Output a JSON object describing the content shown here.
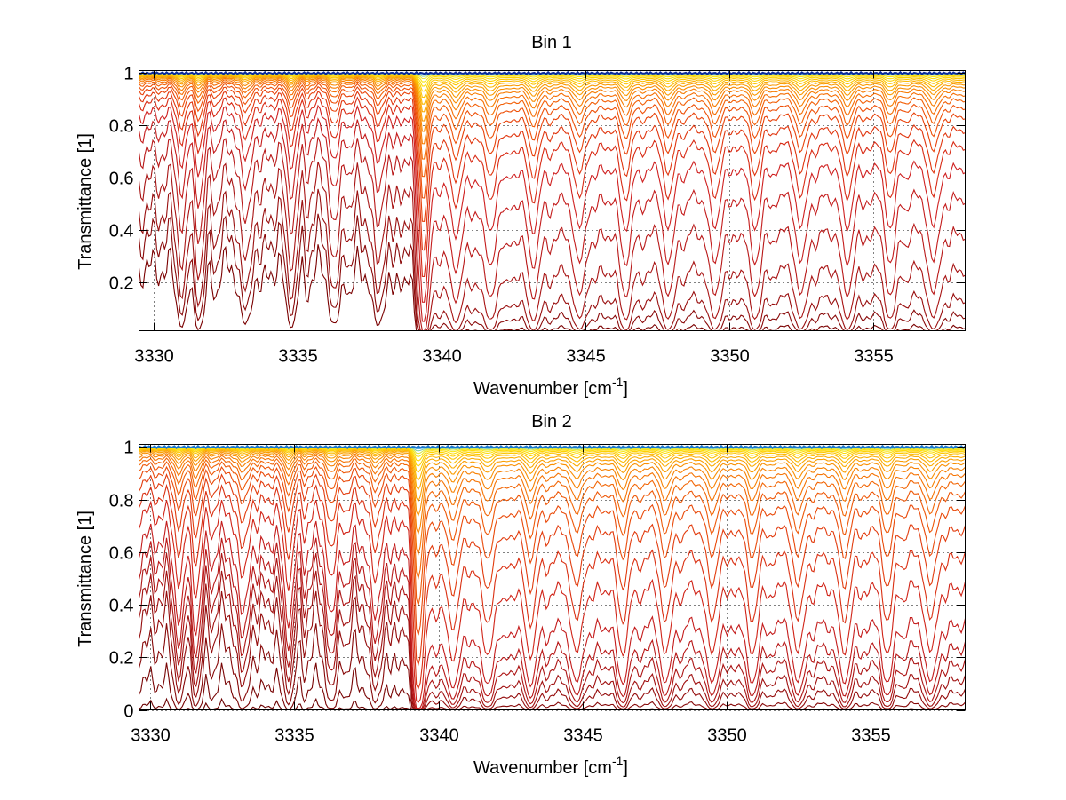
{
  "chart_data": [
    {
      "type": "line",
      "title": "Bin 1",
      "xlabel": "Wavenumber [cm",
      "xlabel_superscript": "-1",
      "xlabel_suffix": "]",
      "ylabel": "Transmittance [1]",
      "xlim": [
        3329.5,
        3358.2
      ],
      "ylim": [
        0.013,
        1.01
      ],
      "xticks": [
        3330,
        3335,
        3340,
        3345,
        3350,
        3355
      ],
      "xtick_labels": [
        "3330",
        "3335",
        "3340",
        "3345",
        "3350",
        "3355"
      ],
      "yticks": [
        0.2,
        0.4,
        0.6,
        0.8,
        1
      ],
      "ytick_labels": [
        "0.2",
        "0.4",
        "0.6",
        "0.8",
        "1"
      ],
      "grid": true,
      "colormap": "hot-to-jet (dark red = strongest absorption, yellow/blue = weakest)",
      "band_edge": 3339.3,
      "absorber_scales": [
        4.0,
        2.9,
        2.2,
        1.55,
        1.05,
        0.72,
        0.5,
        0.36,
        0.27,
        0.2,
        0.155,
        0.12,
        0.095,
        0.075,
        0.06,
        0.048,
        0.038,
        0.03,
        0.023,
        0.017,
        0.012,
        0.008,
        0.005,
        0.003,
        0.0015,
        0.0
      ],
      "curve_colors": [
        "#7a0000",
        "#8a0a0a",
        "#990f0f",
        "#a81414",
        "#b81818",
        "#c41c1c",
        "#cf2020",
        "#d82a14",
        "#e0350e",
        "#e8420a",
        "#ee5008",
        "#f25f06",
        "#f56e05",
        "#f77d04",
        "#f98c03",
        "#fa9b02",
        "#fbaa02",
        "#fcb902",
        "#fdc603",
        "#fdd304",
        "#fdde08",
        "#fbe612",
        "#e8ea3a",
        "#9ed89a",
        "#3a8fd8",
        "#0a2a9a"
      ]
    },
    {
      "type": "line",
      "title": "Bin 2",
      "xlabel": "Wavenumber [cm",
      "xlabel_superscript": "-1",
      "xlabel_suffix": "]",
      "ylabel": "Transmittance [1]",
      "xlim": [
        3329.6,
        3358.3
      ],
      "ylim": [
        0,
        1.01
      ],
      "xticks": [
        3330,
        3335,
        3340,
        3345,
        3350,
        3355
      ],
      "xtick_labels": [
        "3330",
        "3335",
        "3340",
        "3345",
        "3350",
        "3355"
      ],
      "yticks": [
        0,
        0.2,
        0.4,
        0.6,
        0.8,
        1
      ],
      "ytick_labels": [
        "0",
        "0.2",
        "0.4",
        "0.6",
        "0.8",
        "1"
      ],
      "grid": true,
      "colormap": "hot-to-jet (dark red = strongest absorption, yellow/blue = weakest)",
      "band_edge": 3339.2,
      "absorber_scales": [
        12.0,
        6.5,
        4.2,
        3.0,
        2.4,
        1.95,
        1.6,
        1.25,
        0.85,
        0.6,
        0.42,
        0.3,
        0.22,
        0.165,
        0.125,
        0.095,
        0.072,
        0.055,
        0.042,
        0.032,
        0.024,
        0.018,
        0.013,
        0.009,
        0.006,
        0.0035,
        0.0015,
        0.0
      ],
      "curve_colors": [
        "#6a0000",
        "#780404",
        "#860808",
        "#940c0c",
        "#a01010",
        "#ac1414",
        "#b81818",
        "#c41c1c",
        "#d02418",
        "#da3012",
        "#e23c0e",
        "#e94a0a",
        "#ee5808",
        "#f26606",
        "#f57405",
        "#f78204",
        "#f99003",
        "#fa9e02",
        "#fbac02",
        "#fcba02",
        "#fdc603",
        "#fdd204",
        "#fddc08",
        "#f6e516",
        "#d6e84c",
        "#7ed0b4",
        "#2aa0e0",
        "#1a78d0"
      ]
    }
  ]
}
